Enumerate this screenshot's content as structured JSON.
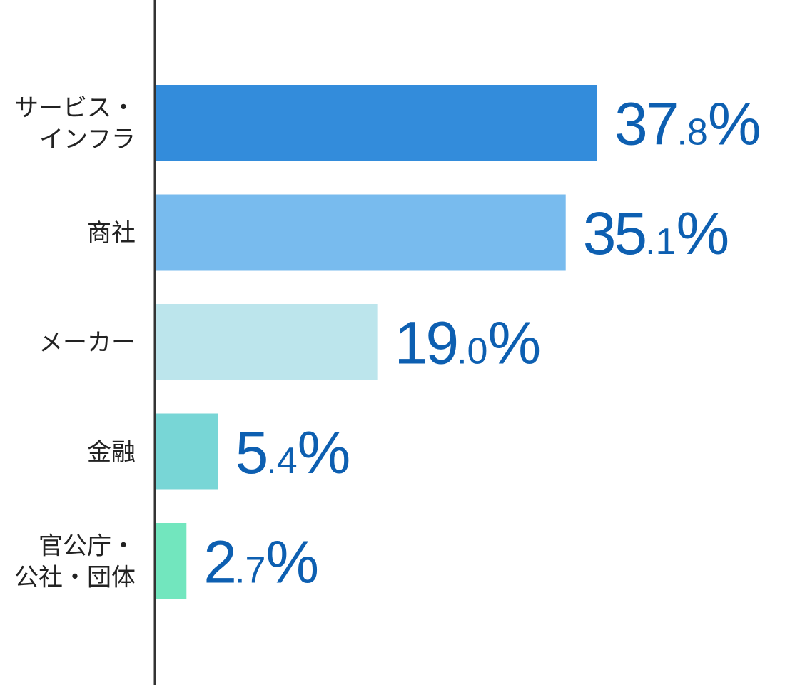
{
  "chart_data": {
    "type": "bar",
    "orientation": "horizontal",
    "categories": [
      [
        "サービス・",
        "インフラ"
      ],
      [
        "商社"
      ],
      [
        "メーカー"
      ],
      [
        "金融"
      ],
      [
        "官公庁・",
        "公社・団体"
      ]
    ],
    "values": [
      37.8,
      35.1,
      19.0,
      5.4,
      2.7
    ],
    "value_labels": [
      {
        "int": "37",
        "dec": ".8",
        "unit": "%"
      },
      {
        "int": "35",
        "dec": ".1",
        "unit": "%"
      },
      {
        "int": "19",
        "dec": ".0",
        "unit": "%"
      },
      {
        "int": "5",
        "dec": ".4",
        "unit": "%"
      },
      {
        "int": "2",
        "dec": ".7",
        "unit": "%"
      }
    ],
    "bar_colors": [
      "#338cdb",
      "#78bbee",
      "#bce5ec",
      "#78d6d6",
      "#72e6be"
    ],
    "value_label_color": "#0d5fb1",
    "axis_color": "#333333",
    "xlim": [
      0,
      40
    ],
    "grid": false,
    "legend": "none"
  }
}
